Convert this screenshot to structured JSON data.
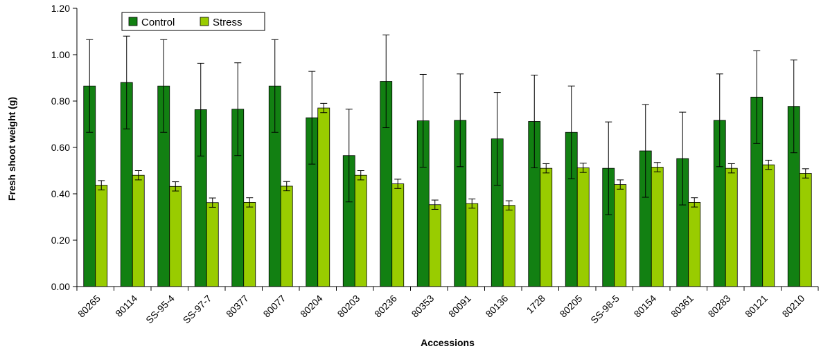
{
  "chart_data": {
    "type": "bar",
    "xlabel": "Accessions",
    "ylabel": "Fresh shoot weight (g)",
    "ylim": [
      0,
      1.2
    ],
    "yticks": [
      "0.00",
      "0.20",
      "0.40",
      "0.60",
      "0.80",
      "1.00",
      "1.20"
    ],
    "grid": false,
    "legend_position": "top-left",
    "categories": [
      "80265",
      "80114",
      "SS-95-4",
      "SS-97-7",
      "80377",
      "80077",
      "80204",
      "80203",
      "80236",
      "80353",
      "80091",
      "80136",
      "1728",
      "80205",
      "SS-98-5",
      "80154",
      "80361",
      "80283",
      "80121",
      "80210"
    ],
    "series": [
      {
        "name": "Control",
        "color": "#128012",
        "values": [
          0.865,
          0.88,
          0.865,
          0.763,
          0.765,
          0.865,
          0.728,
          0.565,
          0.885,
          0.715,
          0.717,
          0.637,
          0.712,
          0.665,
          0.51,
          0.585,
          0.552,
          0.717,
          0.817,
          0.777
        ],
        "errors": [
          0.2,
          0.2,
          0.2,
          0.2,
          0.2,
          0.2,
          0.2,
          0.2,
          0.2,
          0.2,
          0.2,
          0.2,
          0.2,
          0.2,
          0.2,
          0.2,
          0.2,
          0.2,
          0.2,
          0.2
        ]
      },
      {
        "name": "Stress",
        "color": "#99cc00",
        "values": [
          0.437,
          0.48,
          0.432,
          0.362,
          0.363,
          0.433,
          0.77,
          0.48,
          0.443,
          0.353,
          0.358,
          0.35,
          0.51,
          0.512,
          0.44,
          0.515,
          0.363,
          0.51,
          0.525,
          0.488
        ],
        "errors": [
          0.02,
          0.02,
          0.02,
          0.02,
          0.02,
          0.02,
          0.02,
          0.02,
          0.02,
          0.02,
          0.02,
          0.02,
          0.02,
          0.02,
          0.02,
          0.02,
          0.02,
          0.02,
          0.02,
          0.02
        ]
      }
    ]
  }
}
